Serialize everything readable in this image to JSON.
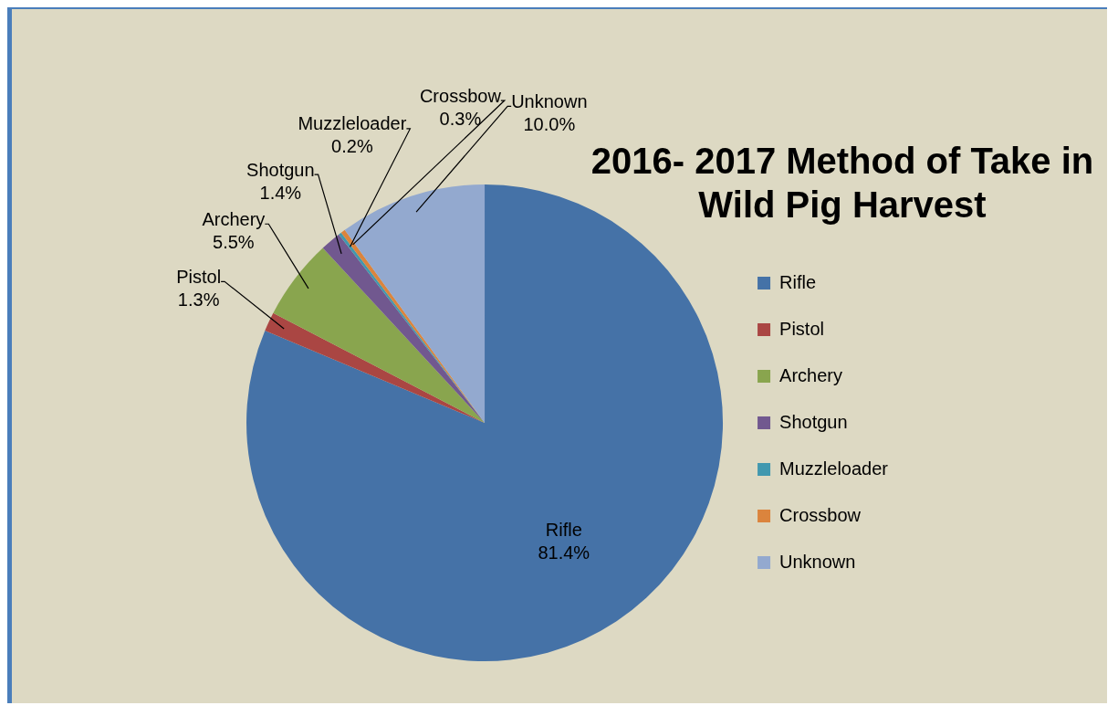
{
  "chart_data": {
    "type": "pie",
    "title": "2016- 2017 Method of Take in Wild Pig Harvest",
    "categories": [
      "Rifle",
      "Pistol",
      "Archery",
      "Shotgun",
      "Muzzleloader",
      "Crossbow",
      "Unknown"
    ],
    "values": [
      81.4,
      1.3,
      5.5,
      1.4,
      0.2,
      0.3,
      10.0
    ],
    "value_labels": [
      "81.4%",
      "1.3%",
      "5.5%",
      "1.4%",
      "0.2%",
      "0.3%",
      "10.0%"
    ],
    "colors": [
      "#4572a7",
      "#aa4643",
      "#89a54e",
      "#71588f",
      "#4198af",
      "#db843d",
      "#93a9cf"
    ],
    "legend": "right"
  }
}
